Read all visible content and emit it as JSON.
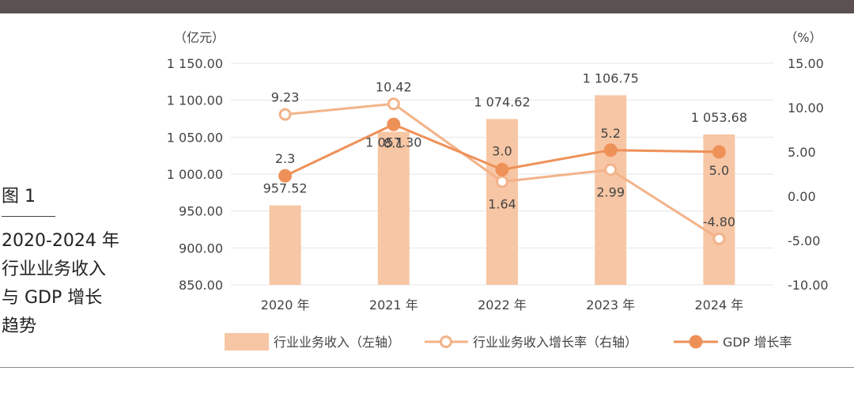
{
  "figure": {
    "label": "图 1",
    "title_lines": [
      "2020-2024 年",
      "行业业务收入",
      "与 GDP 增长",
      "趋势"
    ]
  },
  "colors": {
    "bar": "#f7c6a4",
    "light_line": "#f3b389",
    "dark_line": "#ee9158",
    "grid": "#e6e6e6",
    "text": "#444444",
    "top_bar": "#5a5150"
  },
  "chart_data": {
    "type": "bar+line",
    "categories": [
      "2020 年",
      "2021 年",
      "2022 年",
      "2023 年",
      "2024 年"
    ],
    "left_axis": {
      "unit": "（亿元）",
      "range": [
        850,
        1150
      ],
      "ticks": [
        850,
        900,
        950,
        1000,
        1050,
        1100,
        1150
      ],
      "tick_labels": [
        "850.00",
        "900.00",
        "950.00",
        "1 000.00",
        "1 050.00",
        "1 100.00",
        "1 150.00"
      ]
    },
    "right_axis": {
      "unit": "（%）",
      "range": [
        -10,
        15
      ],
      "ticks": [
        -10,
        -5,
        0,
        5,
        10,
        15
      ],
      "tick_labels": [
        "-10.00",
        "-5.00",
        "0.00",
        "5.00",
        "10.00",
        "15.00"
      ]
    },
    "series": [
      {
        "name": "行业业务收入（左轴）",
        "type": "bar",
        "axis": "left",
        "values": [
          957.52,
          1057.3,
          1074.62,
          1106.75,
          1053.68
        ],
        "labels": [
          "957.52",
          "1 057.30",
          "1 074.62",
          "1 106.75",
          "1 053.68"
        ]
      },
      {
        "name": "行业业务收入增长率（右轴）",
        "type": "line",
        "marker": "hollow-circle",
        "axis": "right",
        "values": [
          9.23,
          10.42,
          1.64,
          2.99,
          -4.8
        ],
        "labels": [
          "9.23",
          "10.42",
          "1.64",
          "2.99",
          "-4.80"
        ]
      },
      {
        "name": "GDP 增长率",
        "type": "line",
        "marker": "filled-circle",
        "axis": "right",
        "values": [
          2.3,
          8.1,
          3.0,
          5.2,
          5.0
        ],
        "labels": [
          "2.3",
          "8.1",
          "3.0",
          "5.2",
          "5.0"
        ]
      }
    ],
    "legend": [
      "行业业务收入（左轴）",
      "行业业务收入增长率（右轴）",
      "GDP 增长率"
    ],
    "legend_position": "bottom",
    "grid": true
  }
}
